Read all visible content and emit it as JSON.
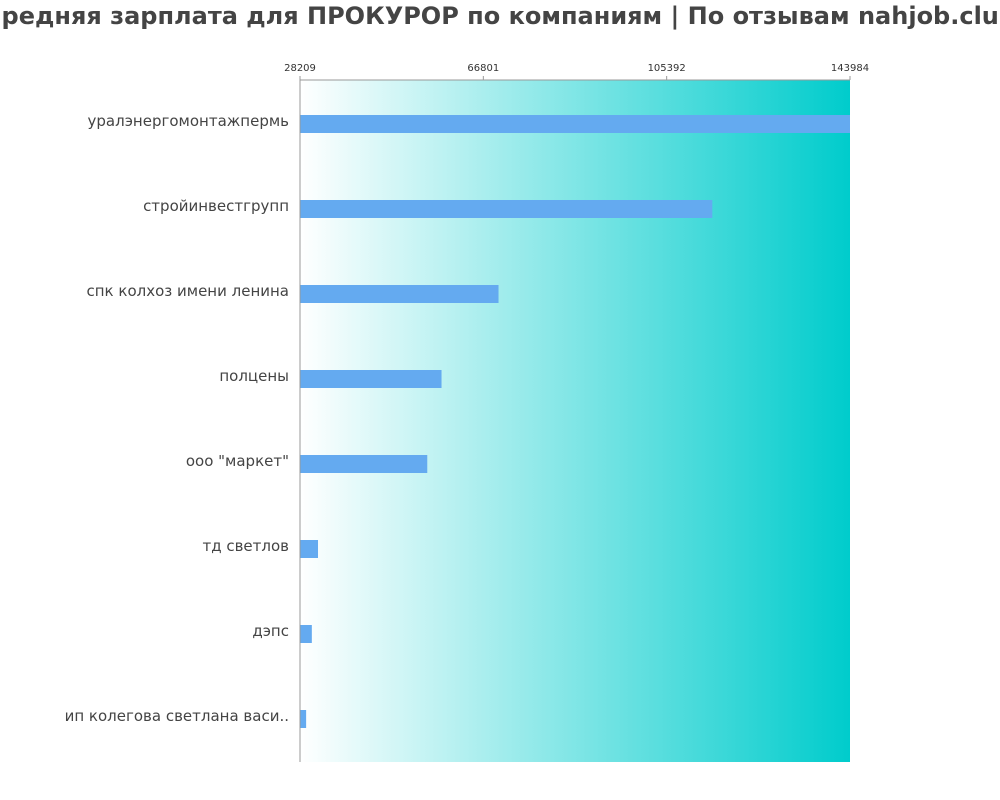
{
  "title": "Средняя зарплата для ПРОКУРОР по компаниям  | По отзывам nahjob.club",
  "colors": {
    "bar": "#64aaf0",
    "gradient_start": "#ffffff",
    "gradient_end": "#00cccc",
    "axis": "#999999",
    "text": "#444444"
  },
  "chart_data": {
    "type": "bar",
    "orientation": "horizontal",
    "title": "Средняя зарплата для ПРОКУРОР по компаниям  | По отзывам nahjob.club",
    "xlim": [
      28209,
      143984
    ],
    "xticks": [
      "28209",
      "66801",
      "105392",
      "143984"
    ],
    "categories": [
      "уралэнергомонтажпермь",
      "стройинвестгрупп",
      "спк колхоз имени ленина",
      "полцены",
      "ооо \"маркет\"",
      "тд светлов",
      "дэпс",
      "ип колегова светлана васи.."
    ],
    "values": [
      143984,
      115000,
      70000,
      58000,
      55000,
      32000,
      30700,
      29500
    ],
    "grid": false,
    "legend": "none"
  }
}
